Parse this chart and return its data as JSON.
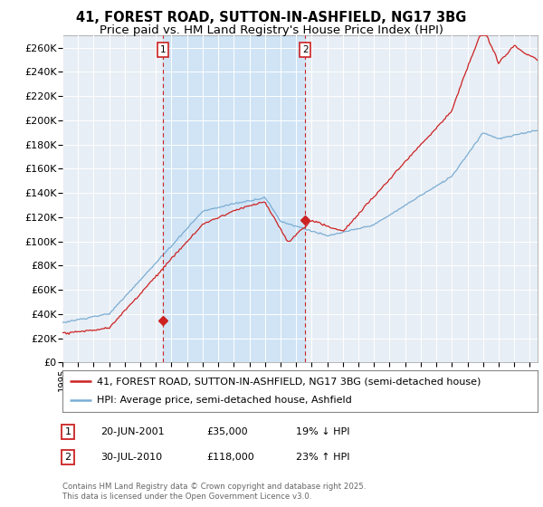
{
  "title": "41, FOREST ROAD, SUTTON-IN-ASHFIELD, NG17 3BG",
  "subtitle": "Price paid vs. HM Land Registry's House Price Index (HPI)",
  "ylabel_ticks": [
    "£0",
    "£20K",
    "£40K",
    "£60K",
    "£80K",
    "£100K",
    "£120K",
    "£140K",
    "£160K",
    "£180K",
    "£200K",
    "£220K",
    "£240K",
    "£260K"
  ],
  "ytick_values": [
    0,
    20000,
    40000,
    60000,
    80000,
    100000,
    120000,
    140000,
    160000,
    180000,
    200000,
    220000,
    240000,
    260000
  ],
  "ylim": [
    0,
    270000
  ],
  "xlim_start": 1995.0,
  "xlim_end": 2025.5,
  "transaction1_x": 2001.47,
  "transaction1_y": 35000,
  "transaction2_x": 2010.58,
  "transaction2_y": 118000,
  "hpi_line_color": "#7aadd4",
  "property_line_color": "#cc2222",
  "marker_box_color": "#cc2222",
  "shade_color": "#d0e4f5",
  "background_color": "#e8eef5",
  "grid_color": "#ffffff",
  "legend1": "41, FOREST ROAD, SUTTON-IN-ASHFIELD, NG17 3BG (semi-detached house)",
  "legend2": "HPI: Average price, semi-detached house, Ashfield",
  "table_row1": [
    "1",
    "20-JUN-2001",
    "£35,000",
    "19% ↓ HPI"
  ],
  "table_row2": [
    "2",
    "30-JUL-2010",
    "£118,000",
    "23% ↑ HPI"
  ],
  "footer": "Contains HM Land Registry data © Crown copyright and database right 2025.\nThis data is licensed under the Open Government Licence v3.0.",
  "title_fontsize": 10.5,
  "subtitle_fontsize": 9.5,
  "tick_fontsize": 8,
  "legend_fontsize": 8
}
